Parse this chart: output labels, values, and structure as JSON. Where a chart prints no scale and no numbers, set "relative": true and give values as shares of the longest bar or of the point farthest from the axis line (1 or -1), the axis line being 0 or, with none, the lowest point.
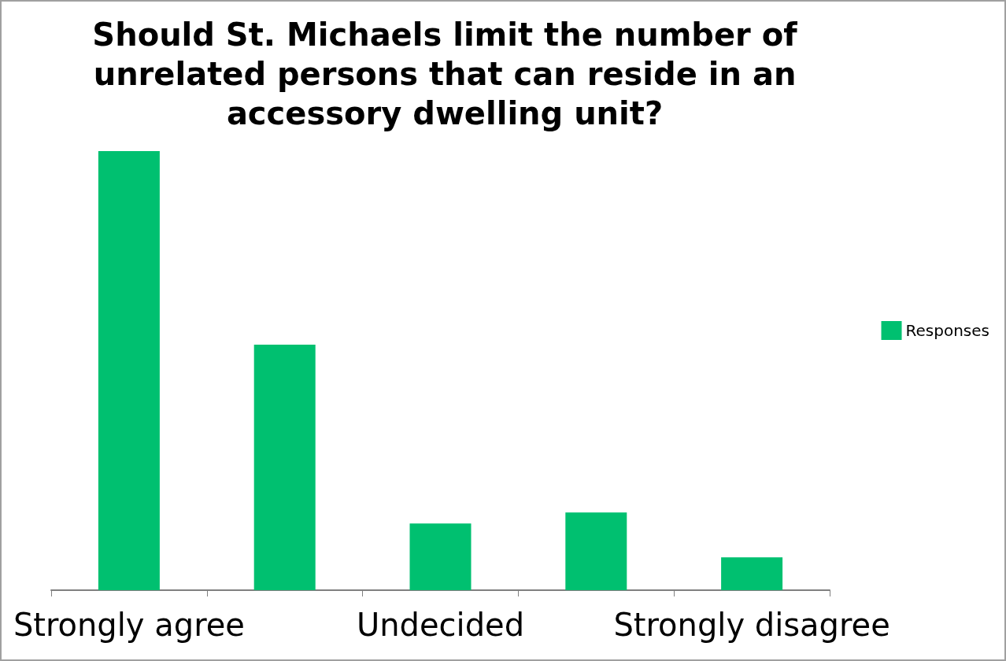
{
  "chart_data": {
    "type": "bar",
    "title": "Should St. Michaels limit the number of\nunrelated persons that can reside in an\naccessory dwelling unit?",
    "categories": [
      "Strongly agree",
      null,
      "Undecided",
      null,
      "Strongly disagree"
    ],
    "series": [
      {
        "name": "Responses",
        "color": "#00c070",
        "values": [
          1,
          0.559,
          0.152,
          0.177,
          0.075
        ]
      }
    ],
    "relative": true,
    "legend": "right"
  }
}
